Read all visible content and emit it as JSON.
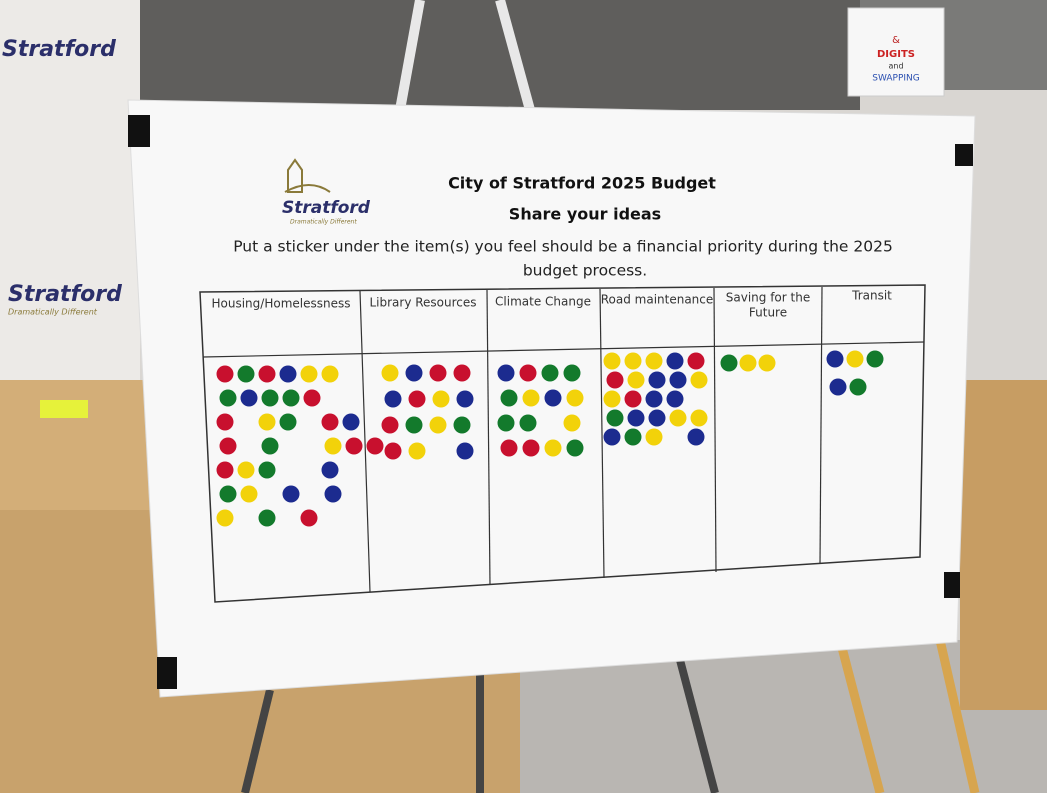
{
  "poster": {
    "logo": {
      "name": "Stratford",
      "tagline": "Dramatically Different"
    },
    "title": "City of Stratford 2025 Budget",
    "subtitle": "Share your ideas",
    "instruction": [
      "Put a sticker under the item(s) you feel should be a financial priority during the 2025",
      "budget process."
    ],
    "columns": [
      "Housing/Homelessness",
      "Library Resources",
      "Climate Change",
      "Road maintenance",
      [
        "Saving for the",
        "Future"
      ],
      "Transit"
    ]
  },
  "background": {
    "banner_left_top": "Stratford",
    "banner_left": "Stratford",
    "banner_left_tagline": "Dramatically Different",
    "sign": [
      "&",
      "DIGITS",
      "and",
      "SWAPPING"
    ]
  }
}
